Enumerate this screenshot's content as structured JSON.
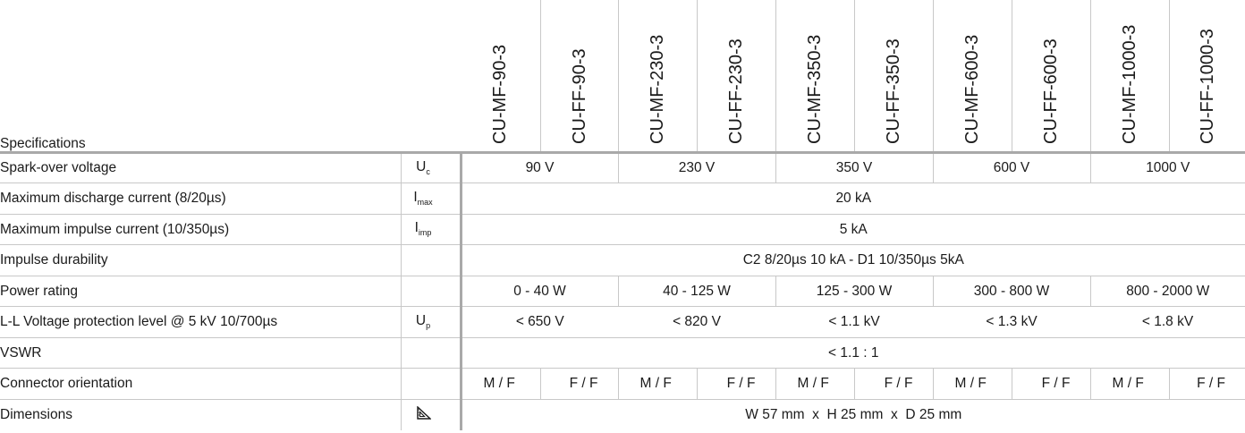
{
  "header": {
    "title": "Specifications",
    "models": [
      "CU-MF-90-3",
      "CU-FF-90-3",
      "CU-MF-230-3",
      "CU-FF-230-3",
      "CU-MF-350-3",
      "CU-FF-350-3",
      "CU-MF-600-3",
      "CU-FF-600-3",
      "CU-MF-1000-3",
      "CU-FF-1000-3"
    ]
  },
  "rows": {
    "spark_over": {
      "label": "Spark-over voltage",
      "sym": "U",
      "sub": "c",
      "values": [
        "90 V",
        "230 V",
        "350 V",
        "600 V",
        "1000 V"
      ]
    },
    "max_discharge": {
      "label": "Maximum discharge current (8/20µs)",
      "sym": "I",
      "sub": "max",
      "value": "20 kA"
    },
    "max_impulse": {
      "label": "Maximum impulse current (10/350µs)",
      "sym": "I",
      "sub": "imp",
      "value": "5 kA"
    },
    "impulse_durability": {
      "label": "Impulse durability",
      "value": "C2 8/20µs 10 kA - D1 10/350µs 5kA"
    },
    "power_rating": {
      "label": "Power rating",
      "values": [
        "0 - 40 W",
        "40 - 125 W",
        "125 - 300 W",
        "300 - 800 W",
        "800 - 2000 W"
      ]
    },
    "ll_voltage": {
      "label": "L-L Voltage protection level @ 5 kV 10/700µs",
      "sym": "U",
      "sub": "p",
      "values": [
        "< 650 V",
        "< 820 V",
        "< 1.1 kV",
        "< 1.3 kV",
        "< 1.8 kV"
      ]
    },
    "vswr": {
      "label": "VSWR",
      "value": "< 1.1 : 1"
    },
    "connector": {
      "label": "Connector orientation",
      "values": [
        "M / F",
        "F / F",
        "M / F",
        "F / F",
        "M / F",
        "F / F",
        "M / F",
        "F / F",
        "M / F",
        "F / F"
      ]
    },
    "dimensions": {
      "label": "Dimensions",
      "icon": "triangle-ruler-icon",
      "value": "W 57 mm  x  H 25 mm  x  D 25 mm"
    }
  }
}
